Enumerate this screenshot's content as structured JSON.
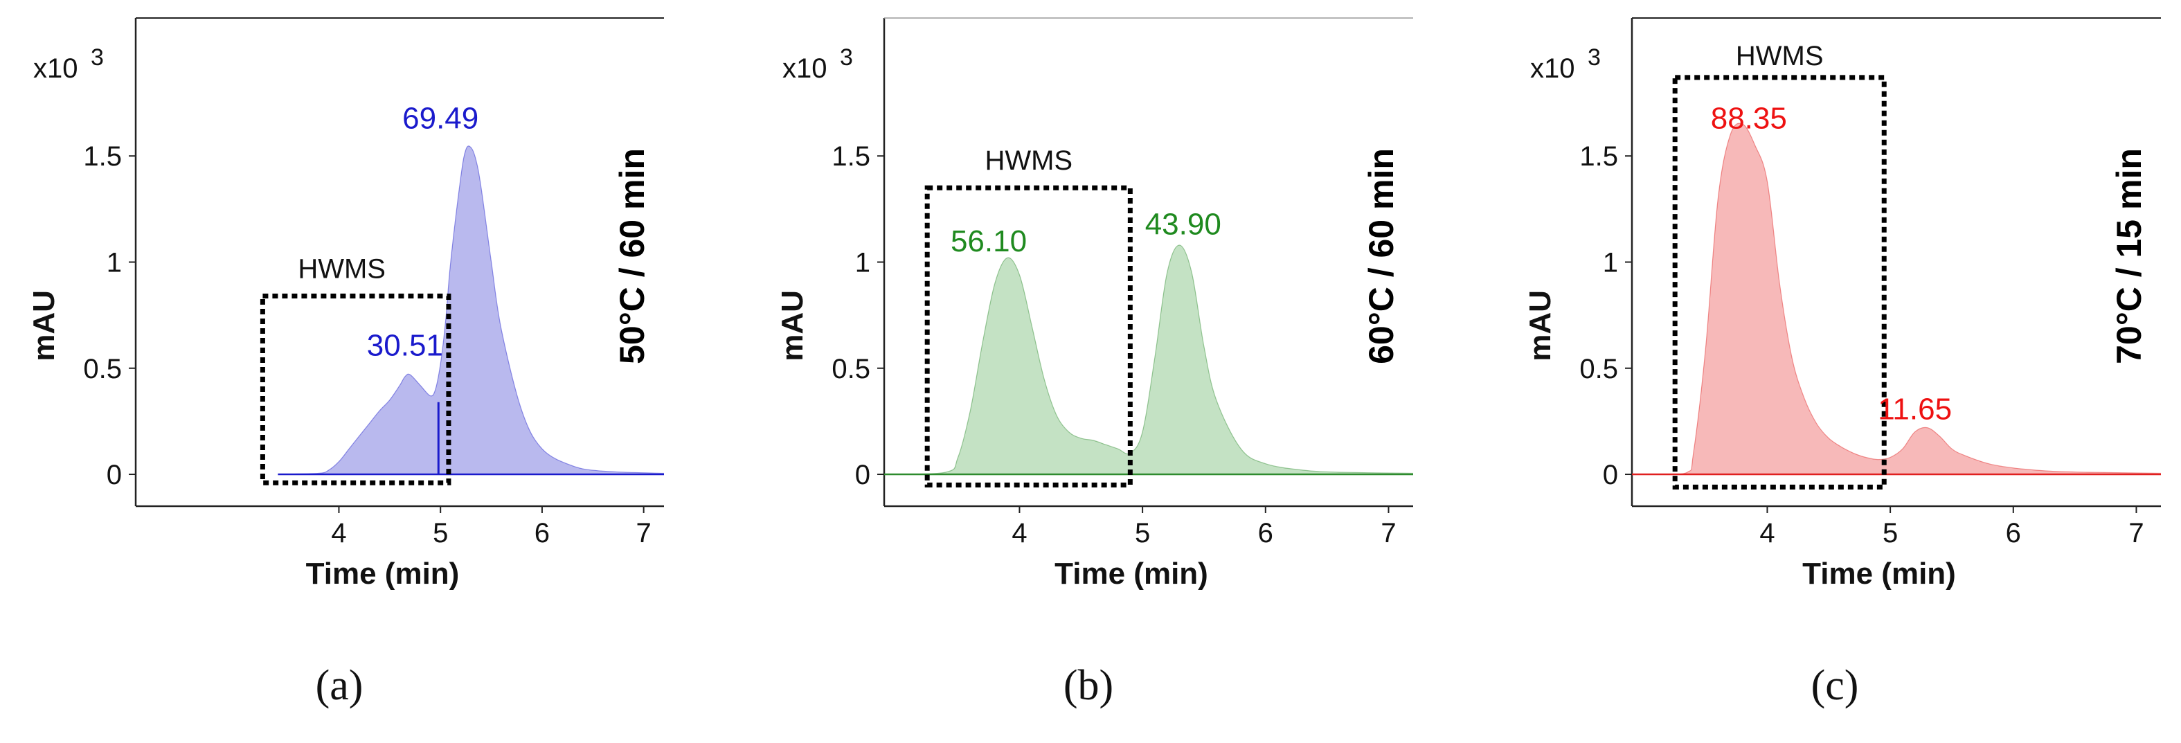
{
  "chart_data": [
    {
      "type": "area",
      "panel_letter": "(a)",
      "condition_label": "50°C / 60 min",
      "xlabel": "Time (min)",
      "ylabel": "mAU",
      "y_multiplier_label": "x10",
      "y_multiplier_exponent": "3",
      "xlim": [
        2.0,
        7.2
      ],
      "ylim": [
        -0.15,
        2.15
      ],
      "xticks": [
        4,
        5,
        6,
        7
      ],
      "xtick_labels": [
        "4",
        "5",
        "6",
        "7"
      ],
      "yticks": [
        0,
        0.5,
        1,
        1.5
      ],
      "ytick_labels": [
        "0",
        "0.5",
        "1",
        "1.5"
      ],
      "colors": {
        "line": "#1a1acc",
        "fill": "#b9b9ee",
        "label": "#1a1acc"
      },
      "series": [
        {
          "name": "50°C / 60 min",
          "x": [
            3.4,
            3.8,
            3.9,
            4.0,
            4.1,
            4.2,
            4.3,
            4.4,
            4.5,
            4.6,
            4.65,
            4.7,
            4.8,
            4.9,
            4.95,
            5.0,
            5.05,
            5.1,
            5.2,
            5.25,
            5.3,
            5.35,
            5.4,
            5.5,
            5.6,
            5.8,
            6.0,
            6.3,
            6.6,
            7.2
          ],
          "values": [
            0,
            0.005,
            0.02,
            0.06,
            0.12,
            0.18,
            0.24,
            0.3,
            0.35,
            0.42,
            0.46,
            0.47,
            0.42,
            0.37,
            0.4,
            0.52,
            0.72,
            1.0,
            1.4,
            1.53,
            1.54,
            1.48,
            1.35,
            1.0,
            0.68,
            0.3,
            0.12,
            0.04,
            0.015,
            0.005
          ]
        }
      ],
      "peak_labels": [
        {
          "text": "30.51",
          "x": 4.65,
          "y": 0.56
        },
        {
          "text": "69.49",
          "x": 5.0,
          "y": 1.63
        }
      ],
      "divider_x": 4.98,
      "box": {
        "label": "HWMS",
        "x_range": [
          3.25,
          5.08
        ],
        "y_range": [
          -0.04,
          0.84
        ]
      }
    },
    {
      "type": "area",
      "panel_letter": "(b)",
      "condition_label": "60°C / 60 min",
      "xlabel": "Time (min)",
      "ylabel": "mAU",
      "y_multiplier_label": "x10",
      "y_multiplier_exponent": "3",
      "xlim": [
        2.9,
        7.2
      ],
      "ylim": [
        -0.15,
        2.15
      ],
      "xticks": [
        4,
        5,
        6,
        7
      ],
      "xtick_labels": [
        "4",
        "5",
        "6",
        "7"
      ],
      "yticks": [
        0,
        0.5,
        1,
        1.5
      ],
      "ytick_labels": [
        "0",
        "0.5",
        "1",
        "1.5"
      ],
      "colors": {
        "line": "#2e8b2e",
        "fill": "#c4e2c4",
        "label": "#1f8a1f"
      },
      "series": [
        {
          "name": "60°C / 60 min",
          "x": [
            2.9,
            3.4,
            3.5,
            3.6,
            3.7,
            3.8,
            3.9,
            4.0,
            4.1,
            4.2,
            4.3,
            4.4,
            4.5,
            4.6,
            4.7,
            4.8,
            4.9,
            5.0,
            5.1,
            5.2,
            5.3,
            5.4,
            5.5,
            5.6,
            5.8,
            6.0,
            6.3,
            6.6,
            7.2
          ],
          "values": [
            0,
            0.01,
            0.08,
            0.3,
            0.62,
            0.9,
            1.02,
            0.94,
            0.7,
            0.45,
            0.28,
            0.2,
            0.17,
            0.16,
            0.14,
            0.12,
            0.1,
            0.2,
            0.55,
            0.95,
            1.08,
            0.95,
            0.6,
            0.35,
            0.12,
            0.05,
            0.02,
            0.01,
            0.005
          ]
        }
      ],
      "peak_labels": [
        {
          "text": "56.10",
          "x": 3.75,
          "y": 1.05
        },
        {
          "text": "43.90",
          "x": 5.33,
          "y": 1.13
        }
      ],
      "box": {
        "label": "HWMS",
        "x_range": [
          3.25,
          4.9
        ],
        "y_range": [
          -0.05,
          1.35
        ]
      }
    },
    {
      "type": "area",
      "panel_letter": "(c)",
      "condition_label": "70°C / 15 min",
      "xlabel": "Time (min)",
      "ylabel": "mAU",
      "y_multiplier_label": "x10",
      "y_multiplier_exponent": "3",
      "xlim": [
        2.9,
        7.2
      ],
      "ylim": [
        -0.15,
        2.15
      ],
      "xticks": [
        4,
        5,
        6,
        7
      ],
      "xtick_labels": [
        "4",
        "5",
        "6",
        "7"
      ],
      "yticks": [
        0,
        0.5,
        1,
        1.5
      ],
      "ytick_labels": [
        "0",
        "0.5",
        "1",
        "1.5"
      ],
      "colors": {
        "line": "#e02020",
        "fill": "#f7b9b9",
        "label": "#ee1111"
      },
      "series": [
        {
          "name": "70°C / 15 min",
          "x": [
            3.1,
            3.35,
            3.4,
            3.5,
            3.6,
            3.7,
            3.8,
            3.9,
            4.0,
            4.1,
            4.2,
            4.3,
            4.4,
            4.5,
            4.6,
            4.7,
            4.8,
            4.9,
            5.0,
            5.1,
            5.2,
            5.3,
            5.4,
            5.5,
            5.6,
            5.8,
            6.0,
            6.3,
            6.6,
            7.2
          ],
          "values": [
            0,
            0.01,
            0.1,
            0.6,
            1.3,
            1.6,
            1.65,
            1.55,
            1.38,
            0.9,
            0.55,
            0.36,
            0.24,
            0.17,
            0.13,
            0.1,
            0.08,
            0.07,
            0.08,
            0.12,
            0.2,
            0.22,
            0.18,
            0.12,
            0.09,
            0.05,
            0.03,
            0.015,
            0.01,
            0.005
          ]
        }
      ],
      "peak_labels": [
        {
          "text": "88.35",
          "x": 3.85,
          "y": 1.63
        },
        {
          "text": "11.65",
          "x": 5.2,
          "y": 0.26
        }
      ],
      "box": {
        "label": "HWMS",
        "x_range": [
          3.25,
          4.95
        ],
        "y_range": [
          -0.06,
          1.87
        ]
      }
    }
  ]
}
